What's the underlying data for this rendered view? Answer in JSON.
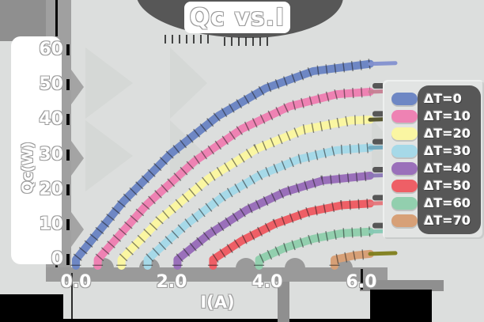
{
  "title": "Qc vs.I",
  "axes": {
    "x_label": "I(A)",
    "y_label": "Qc(W)",
    "x_ticks": [
      "0.0",
      "2.0",
      "4.0",
      "6.0"
    ],
    "y_ticks": [
      "60",
      "50",
      "40",
      "30",
      "20",
      "10",
      "0"
    ]
  },
  "legend": {
    "items": [
      {
        "label": "ΔT=0"
      },
      {
        "label": "ΔT=10"
      },
      {
        "label": "ΔT=20"
      },
      {
        "label": "ΔT=30"
      },
      {
        "label": "ΔT=40"
      },
      {
        "label": "ΔT=50"
      },
      {
        "label": "ΔT=60"
      },
      {
        "label": "ΔT=70"
      }
    ]
  },
  "chart_data": {
    "type": "line",
    "title": "Qc vs.I",
    "xlabel": "I(A)",
    "ylabel": "Qc(W)",
    "xlim": [
      0,
      6.9
    ],
    "ylim": [
      0,
      63
    ],
    "x_tick_values": [
      0.0,
      2.0,
      4.0,
      6.0
    ],
    "y_tick_values": [
      0,
      10,
      20,
      30,
      40,
      50,
      60
    ],
    "grid": false,
    "legend_position": "right",
    "style": "sketchy-hand-drawn, thick bands with black hatch ticks, flat tail caps at right end",
    "series": [
      {
        "name": "ΔT=0",
        "color": "#6e87c4",
        "tail_color": "#8290cf",
        "nub": false,
        "points": [
          [
            0,
            0
          ],
          [
            1,
            16.6
          ],
          [
            2,
            30.3
          ],
          [
            3,
            41.1
          ],
          [
            4,
            49.0
          ],
          [
            5,
            53.9
          ],
          [
            6.2,
            56
          ]
        ]
      },
      {
        "name": "ΔT=10",
        "color": "#ee82b3",
        "tail_color": "#c57f92",
        "nub": true,
        "points": [
          [
            0.46,
            0
          ],
          [
            1.5,
            15.8
          ],
          [
            2.5,
            28.1
          ],
          [
            3.5,
            37.4
          ],
          [
            4.5,
            43.8
          ],
          [
            5.5,
            47.3
          ],
          [
            6.2,
            48
          ]
        ]
      },
      {
        "name": "ΔT=20",
        "color": "#faf6a2",
        "tail_color": "#4f4f28",
        "nub": true,
        "points": [
          [
            0.96,
            0
          ],
          [
            1.8,
            11.8
          ],
          [
            2.8,
            23.2
          ],
          [
            3.8,
            31.6
          ],
          [
            4.8,
            37.2
          ],
          [
            5.8,
            39.8
          ],
          [
            6.2,
            40
          ]
        ]
      },
      {
        "name": "ΔT=30",
        "color": "#a6d9e8",
        "tail_color": "#70a9bf",
        "nub": true,
        "points": [
          [
            1.51,
            0
          ],
          [
            2.3,
            9.8
          ],
          [
            3.1,
            18.0
          ],
          [
            3.9,
            24.3
          ],
          [
            4.7,
            28.7
          ],
          [
            5.5,
            31.3
          ],
          [
            6.2,
            32
          ]
        ]
      },
      {
        "name": "ΔT=40",
        "color": "#9a70ba",
        "tail_color": "#8a77b5",
        "nub": true,
        "points": [
          [
            2.14,
            0
          ],
          [
            2.8,
            7.2
          ],
          [
            3.6,
            14.2
          ],
          [
            4.4,
            19.3
          ],
          [
            5.2,
            22.6
          ],
          [
            6.2,
            24
          ]
        ]
      },
      {
        "name": "ΔT=50",
        "color": "#ee5f66",
        "tail_color": "#e4757a",
        "nub": true,
        "points": [
          [
            2.89,
            0
          ],
          [
            3.5,
            5.4
          ],
          [
            4.2,
            10.2
          ],
          [
            4.9,
            13.6
          ],
          [
            5.6,
            15.5
          ],
          [
            6.2,
            16
          ]
        ]
      },
      {
        "name": "ΔT=60",
        "color": "#92cfae",
        "tail_color": "#86c8b4",
        "nub": true,
        "points": [
          [
            3.86,
            0
          ],
          [
            4.4,
            3.3
          ],
          [
            5.0,
            5.9
          ],
          [
            5.6,
            7.5
          ],
          [
            6.2,
            8
          ]
        ]
      },
      {
        "name": "ΔT=70",
        "color": "#d7a077",
        "tail_color": "#7e7d1a",
        "nub": false,
        "points": [
          [
            5.45,
            0
          ],
          [
            5.9,
            1.2
          ],
          [
            6.2,
            1.6
          ]
        ]
      }
    ]
  }
}
